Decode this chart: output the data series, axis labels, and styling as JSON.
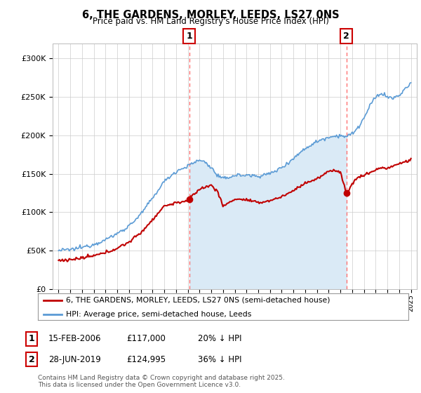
{
  "title": "6, THE GARDENS, MORLEY, LEEDS, LS27 0NS",
  "subtitle": "Price paid vs. HM Land Registry's House Price Index (HPI)",
  "hpi_color": "#5b9bd5",
  "hpi_fill_color": "#daeaf6",
  "price_color": "#c00000",
  "vline_color": "#ff4444",
  "annotation1": {
    "label": "1",
    "date_str": "15-FEB-2006",
    "price": 117000,
    "hpi_note": "20% ↓ HPI",
    "x_year": 2006.12
  },
  "annotation2": {
    "label": "2",
    "date_str": "28-JUN-2019",
    "price": 124995,
    "hpi_note": "36% ↓ HPI",
    "x_year": 2019.5
  },
  "legend_property": "6, THE GARDENS, MORLEY, LEEDS, LS27 0NS (semi-detached house)",
  "legend_hpi": "HPI: Average price, semi-detached house, Leeds",
  "footer": "Contains HM Land Registry data © Crown copyright and database right 2025.\nThis data is licensed under the Open Government Licence v3.0.",
  "ylim": [
    0,
    320000
  ],
  "yticks": [
    0,
    50000,
    100000,
    150000,
    200000,
    250000,
    300000
  ],
  "xlim": [
    1994.5,
    2025.5
  ],
  "figsize": [
    6.0,
    5.6
  ],
  "dpi": 100
}
